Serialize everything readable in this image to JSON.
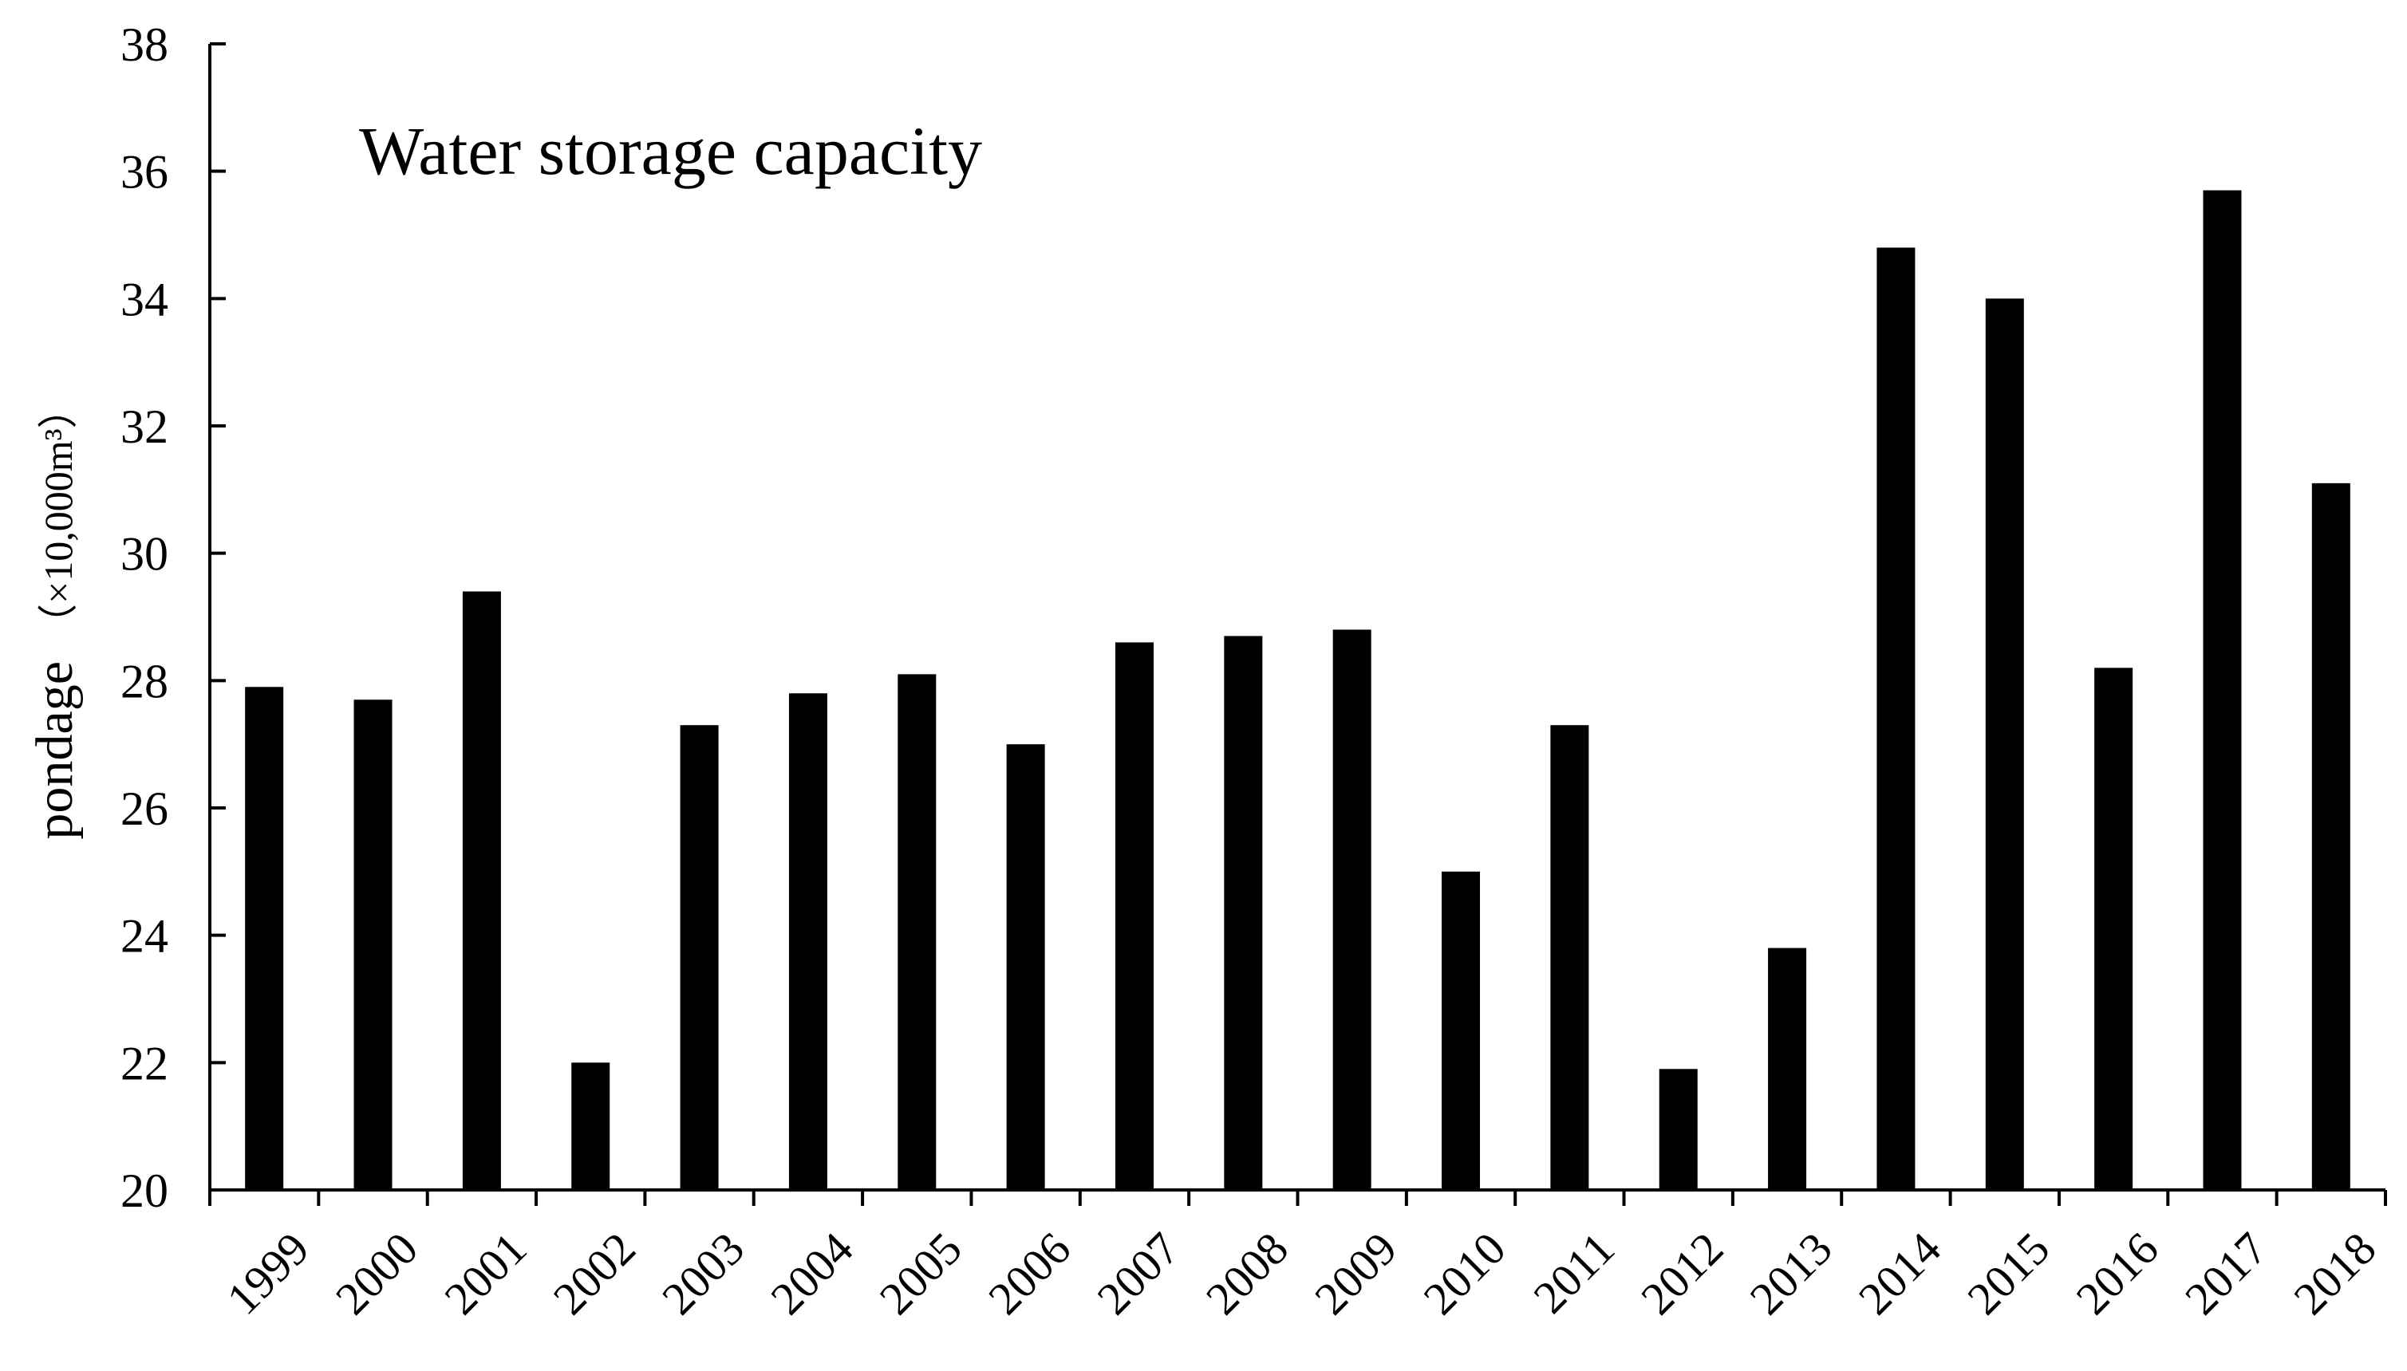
{
  "chart_data": {
    "type": "bar",
    "title": "Water storage capacity",
    "xlabel": "",
    "ylabel": "pondage",
    "ylabel_unit": "（×10,000m³）",
    "categories": [
      "1999",
      "2000",
      "2001",
      "2002",
      "2003",
      "2004",
      "2005",
      "2006",
      "2007",
      "2008",
      "2009",
      "2010",
      "2011",
      "2012",
      "2013",
      "2014",
      "2015",
      "2016",
      "2017",
      "2018"
    ],
    "series": [
      {
        "values": [
          27.9,
          27.7,
          29.4,
          22.0,
          27.3,
          27.8,
          28.1,
          27.0,
          28.6,
          28.7,
          28.8,
          25.0,
          27.3,
          21.9,
          23.8,
          34.8,
          34.0,
          28.2,
          35.7,
          31.1
        ]
      }
    ],
    "ylim": [
      20,
      38
    ],
    "yticks": [
      "20",
      "22",
      "24",
      "26",
      "28",
      "30",
      "32",
      "34",
      "36",
      "38"
    ],
    "grid": false,
    "legend": "none",
    "bar_color": "#000000",
    "axis_color": "#000000"
  }
}
